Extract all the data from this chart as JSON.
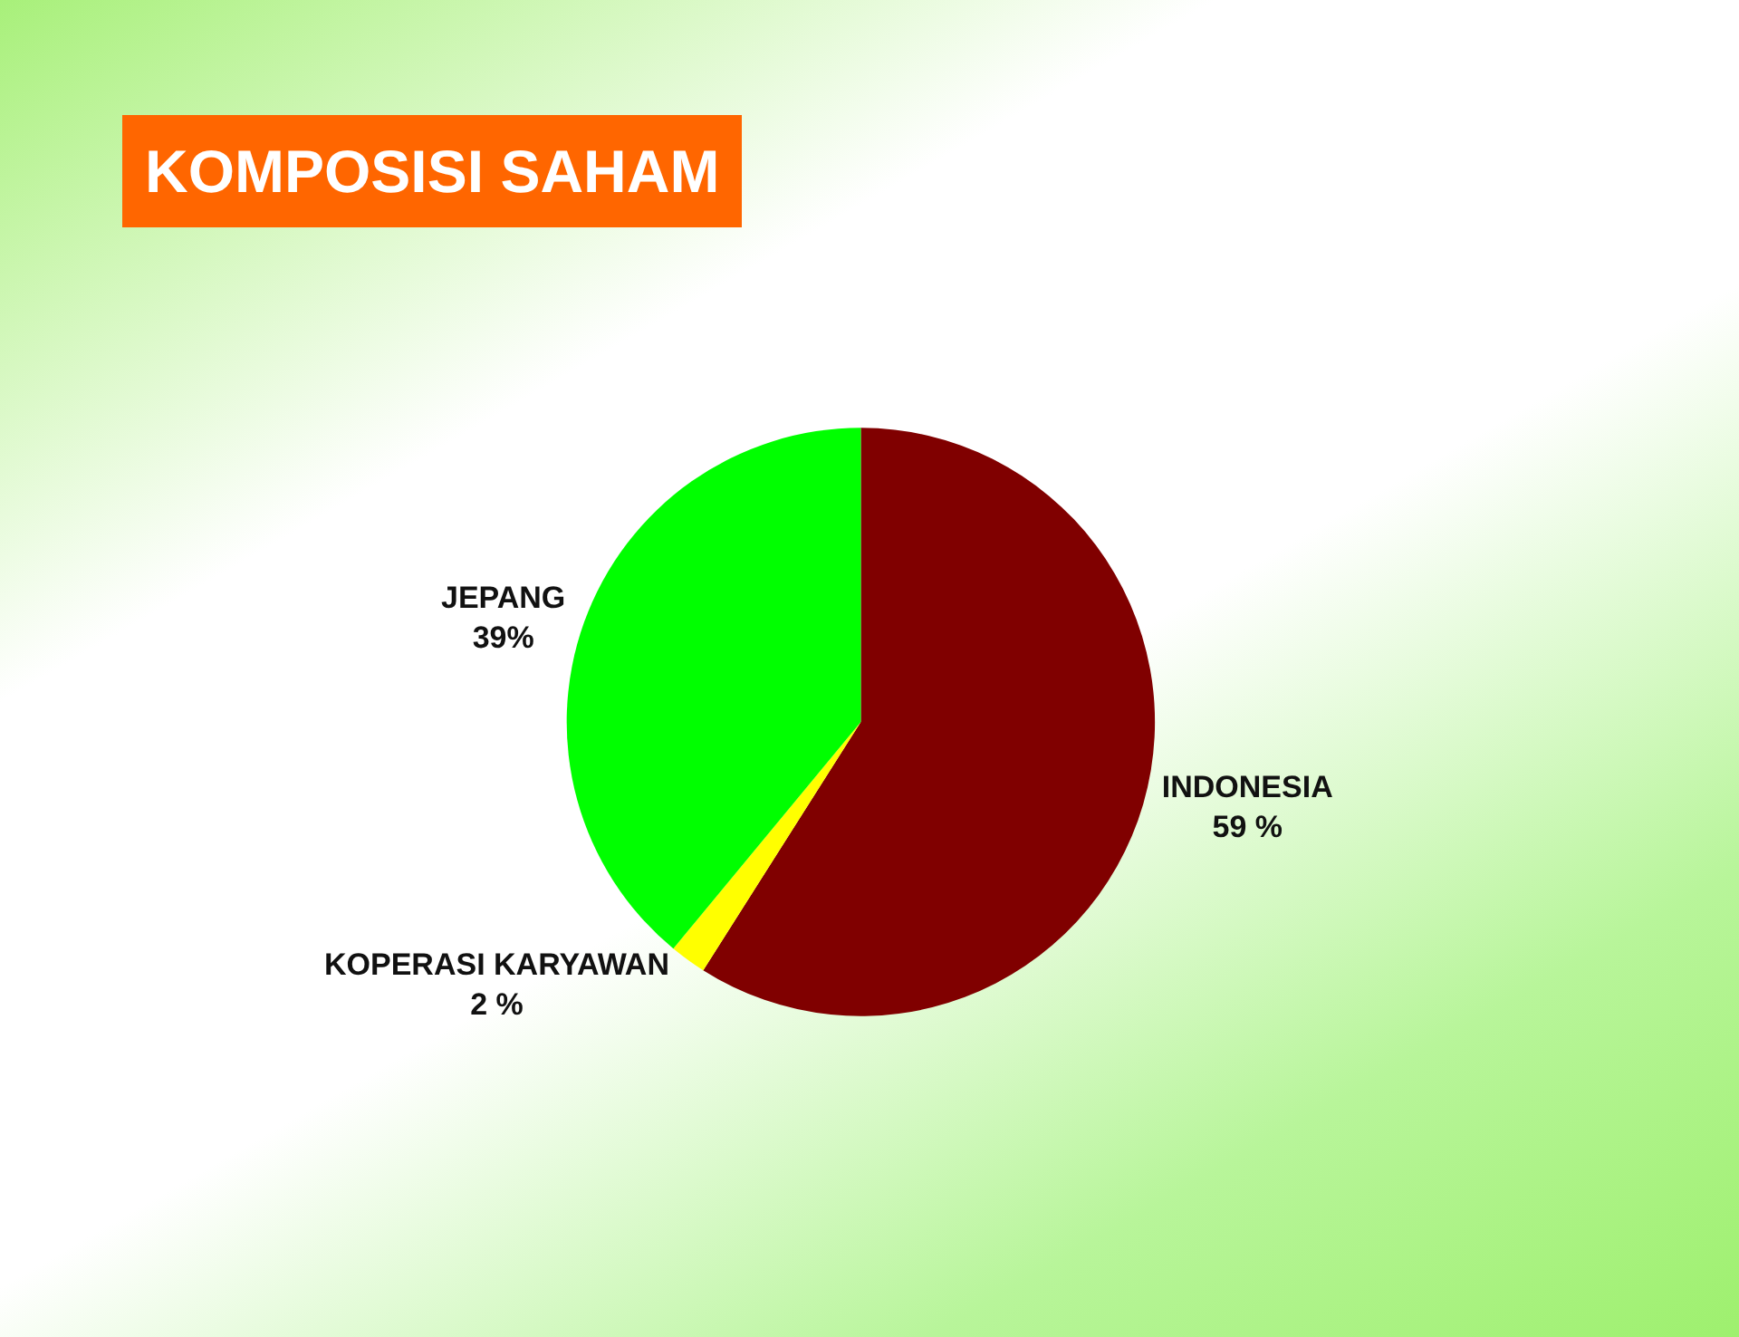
{
  "chart_data": {
    "type": "pie",
    "title": "KOMPOSISI SAHAM",
    "categories": [
      "INDONESIA",
      "KOPERASI KARYAWAN",
      "JEPANG"
    ],
    "values": [
      59,
      2,
      39
    ],
    "value_labels": [
      "59 %",
      "2 %",
      "39%"
    ],
    "colors": [
      "#800000",
      "#ffff00",
      "#00ff00"
    ]
  }
}
